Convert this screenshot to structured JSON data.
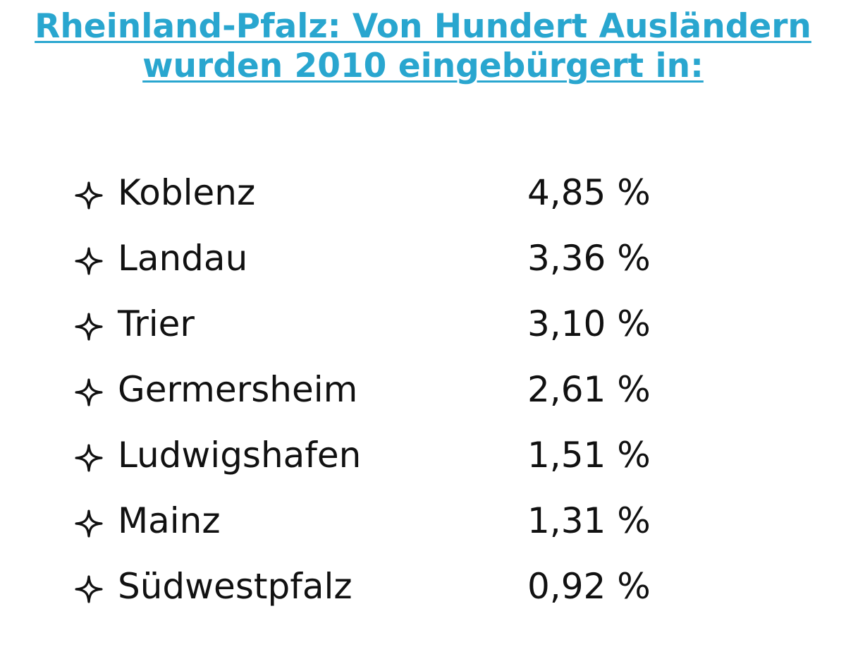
{
  "title": {
    "line1": "Rheinland-Pfalz: Von Hundert Ausländern",
    "line2": "wurden 2010 eingebürgert in:",
    "color": "#29a6cf"
  },
  "list": {
    "bullet_icon": "four-pointed-star-outline",
    "items": [
      {
        "name": "Koblenz",
        "value": "4,85 %"
      },
      {
        "name": "Landau",
        "value": "3,36 %"
      },
      {
        "name": "Trier",
        "value": "3,10 %"
      },
      {
        "name": "Germersheim",
        "value": "2,61 %"
      },
      {
        "name": "Ludwigshafen",
        "value": "1,51 %"
      },
      {
        "name": "Mainz",
        "value": "1,31 %"
      },
      {
        "name": "Südwestpfalz",
        "value": "0,92 %"
      }
    ]
  }
}
